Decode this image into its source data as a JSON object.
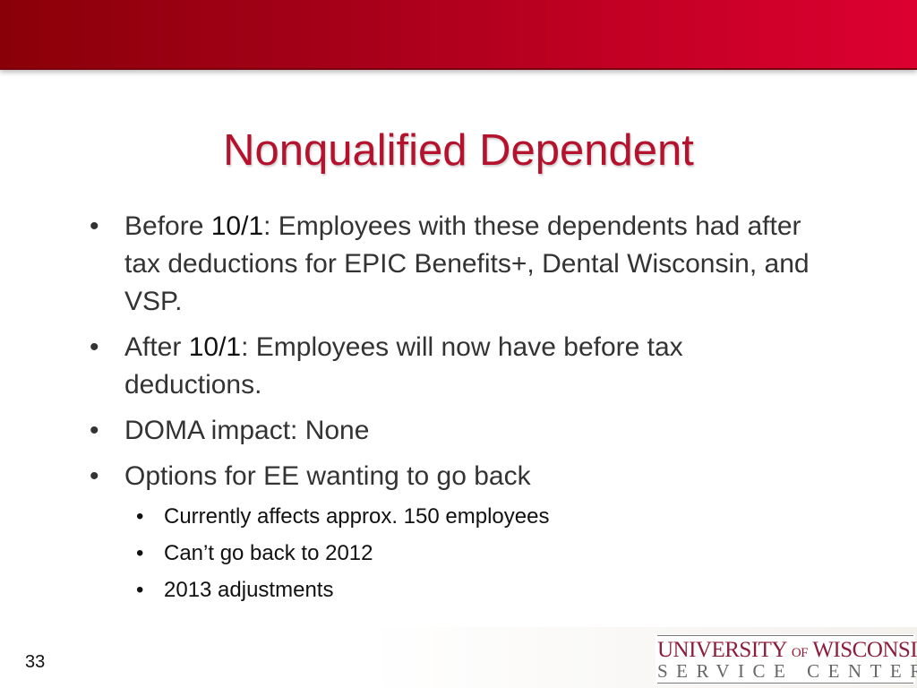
{
  "slide": {
    "title": "Nonqualified Dependent",
    "page_number": "33",
    "bullets": [
      {
        "prefix": "Before ",
        "date": "10/1",
        "text": ":  Employees with these dependents had after tax deductions for EPIC Benefits+, Dental Wisconsin, and VSP."
      },
      {
        "prefix": "After ",
        "date": "10/1",
        "text": ":  Employees will now have before tax deductions."
      },
      {
        "text": "DOMA impact:  None"
      },
      {
        "text": "Options for EE wanting to go back"
      }
    ],
    "sub_bullets": [
      "Currently affects approx. 150 employees",
      "Can’t go back to 2012",
      "2013 adjustments"
    ]
  },
  "logo": {
    "line1_a": "UNIVERSITY",
    "line1_of": "OF",
    "line1_b": "WISCONSIN",
    "line2": "SERVICE CENTER"
  },
  "colors": {
    "header_band": "#c40025",
    "title": "#b5122d",
    "logo_red": "#8c1d3c"
  }
}
